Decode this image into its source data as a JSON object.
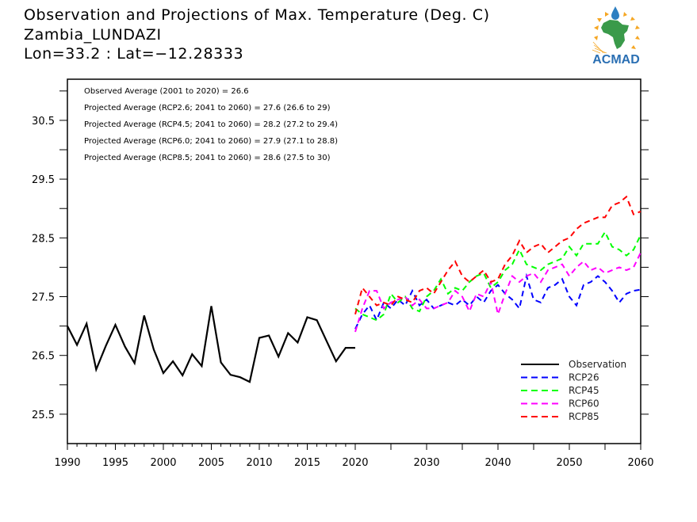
{
  "header": {
    "title": "Observation and Projections of Max. Temperature (Deg. C)",
    "station": "Zambia_LUNDAZI",
    "coords": "Lon=33.2 : Lat=−12.28333",
    "logo_text": "ACMAD"
  },
  "chart_data": {
    "type": "line",
    "title": "Observation and Projections of Max. Temperature (Deg. C)",
    "subtitle": "Zambia_LUNDAZI / Lon=33.2 : Lat=-12.28333",
    "xlabel": "",
    "ylabel": "",
    "ylim": [
      25.0,
      31.2
    ],
    "grid": false,
    "legend_position": "bottom-right",
    "x_axis_segments": [
      {
        "range": [
          1990,
          2020
        ],
        "ticks": [
          1990,
          1995,
          2000,
          2005,
          2010,
          2015,
          2020
        ],
        "minor_step": 1
      },
      {
        "range": [
          2020,
          2060
        ],
        "ticks": [
          2030,
          2040,
          2050,
          2060
        ],
        "minor_step": 5
      }
    ],
    "y_ticks": [
      25.5,
      26.5,
      27.5,
      28.5,
      29.5,
      30.5
    ],
    "y_minor_ticks": [
      26.0,
      27.0,
      28.0,
      29.0,
      30.0,
      31.0
    ],
    "annotations": [
      "Observed Average (2001 to 2020) = 26.6",
      "Projected Average (RCP2.6; 2041 to 2060) = 27.6 (26.6 to 29)",
      "Projected Average (RCP4.5; 2041 to 2060) = 28.2 (27.2 to 29.4)",
      "Projected Average (RCP6.0; 2041 to 2060) = 27.9 (27.1 to 28.8)",
      "Projected Average (RCP8.5; 2041 to 2060) = 28.6 (27.5 to 30)"
    ],
    "series": [
      {
        "name": "Observation",
        "color": "#000000",
        "dash": "solid",
        "x": [
          1990,
          1991,
          1992,
          1993,
          1994,
          1995,
          1996,
          1997,
          1998,
          1999,
          2000,
          2001,
          2002,
          2003,
          2004,
          2005,
          2006,
          2007,
          2008,
          2009,
          2010,
          2011,
          2012,
          2013,
          2014,
          2015,
          2016,
          2017,
          2018,
          2019,
          2020
        ],
        "values": [
          27.0,
          26.68,
          27.04,
          26.26,
          26.66,
          27.02,
          26.65,
          26.37,
          27.18,
          26.6,
          26.2,
          26.4,
          26.16,
          26.52,
          26.32,
          27.34,
          26.38,
          26.17,
          26.13,
          26.05,
          26.8,
          26.84,
          26.48,
          26.88,
          26.72,
          27.15,
          27.1,
          26.75,
          26.4,
          26.63,
          26.63
        ]
      },
      {
        "name": "RCP26",
        "color": "#0000ff",
        "dash": "dashed",
        "x": [
          2020,
          2021,
          2022,
          2023,
          2024,
          2025,
          2026,
          2027,
          2028,
          2029,
          2030,
          2031,
          2032,
          2033,
          2034,
          2035,
          2036,
          2037,
          2038,
          2039,
          2040,
          2041,
          2042,
          2043,
          2044,
          2045,
          2046,
          2047,
          2048,
          2049,
          2050,
          2051,
          2052,
          2053,
          2054,
          2055,
          2056,
          2057,
          2058,
          2059,
          2060
        ],
        "values": [
          26.95,
          27.2,
          27.35,
          27.1,
          27.4,
          27.3,
          27.45,
          27.35,
          27.6,
          27.35,
          27.45,
          27.3,
          27.35,
          27.4,
          27.35,
          27.45,
          27.35,
          27.5,
          27.4,
          27.6,
          27.7,
          27.55,
          27.45,
          27.3,
          27.85,
          27.45,
          27.4,
          27.65,
          27.7,
          27.8,
          27.5,
          27.35,
          27.7,
          27.75,
          27.85,
          27.75,
          27.6,
          27.4,
          27.55,
          27.6,
          27.62
        ]
      },
      {
        "name": "RCP45",
        "color": "#00ff00",
        "dash": "dashed",
        "x": [
          2020,
          2021,
          2022,
          2023,
          2024,
          2025,
          2026,
          2027,
          2028,
          2029,
          2030,
          2031,
          2032,
          2033,
          2034,
          2035,
          2036,
          2037,
          2038,
          2039,
          2040,
          2041,
          2042,
          2043,
          2044,
          2045,
          2046,
          2047,
          2048,
          2049,
          2050,
          2051,
          2052,
          2053,
          2054,
          2055,
          2056,
          2057,
          2058,
          2059,
          2060
        ],
        "values": [
          27.3,
          27.2,
          27.15,
          27.1,
          27.2,
          27.55,
          27.4,
          27.5,
          27.3,
          27.25,
          27.5,
          27.6,
          27.8,
          27.55,
          27.65,
          27.6,
          27.75,
          27.85,
          27.9,
          27.65,
          27.75,
          27.95,
          28.05,
          28.3,
          28.05,
          28.0,
          27.95,
          28.05,
          28.1,
          28.15,
          28.35,
          28.2,
          28.4,
          28.4,
          28.4,
          28.6,
          28.35,
          28.3,
          28.2,
          28.3,
          28.55
        ]
      },
      {
        "name": "RCP60",
        "color": "#ff00ff",
        "dash": "dashed",
        "x": [
          2020,
          2021,
          2022,
          2023,
          2024,
          2025,
          2026,
          2027,
          2028,
          2029,
          2030,
          2031,
          2032,
          2033,
          2034,
          2035,
          2036,
          2037,
          2038,
          2039,
          2040,
          2041,
          2042,
          2043,
          2044,
          2045,
          2046,
          2047,
          2048,
          2049,
          2050,
          2051,
          2052,
          2053,
          2054,
          2055,
          2056,
          2057,
          2058,
          2059,
          2060
        ],
        "values": [
          26.9,
          27.3,
          27.6,
          27.6,
          27.3,
          27.4,
          27.45,
          27.5,
          27.35,
          27.45,
          27.3,
          27.3,
          27.35,
          27.4,
          27.6,
          27.5,
          27.25,
          27.55,
          27.5,
          27.75,
          27.2,
          27.55,
          27.85,
          27.75,
          27.85,
          27.9,
          27.75,
          27.95,
          28.0,
          28.05,
          27.85,
          28.0,
          28.1,
          27.95,
          28.0,
          27.9,
          27.95,
          28.0,
          27.95,
          28.0,
          28.25
        ]
      },
      {
        "name": "RCP85",
        "color": "#ff0000",
        "dash": "dashed",
        "x": [
          2020,
          2021,
          2022,
          2023,
          2024,
          2025,
          2026,
          2027,
          2028,
          2029,
          2030,
          2031,
          2032,
          2033,
          2034,
          2035,
          2036,
          2037,
          2038,
          2039,
          2040,
          2041,
          2042,
          2043,
          2044,
          2045,
          2046,
          2047,
          2048,
          2049,
          2050,
          2051,
          2052,
          2053,
          2054,
          2055,
          2056,
          2057,
          2058,
          2059,
          2060
        ],
        "values": [
          27.2,
          27.65,
          27.5,
          27.35,
          27.4,
          27.35,
          27.5,
          27.45,
          27.4,
          27.6,
          27.65,
          27.55,
          27.75,
          27.95,
          28.1,
          27.85,
          27.75,
          27.85,
          27.95,
          27.75,
          27.8,
          28.05,
          28.2,
          28.45,
          28.25,
          28.35,
          28.4,
          28.25,
          28.35,
          28.45,
          28.5,
          28.65,
          28.75,
          28.8,
          28.85,
          28.85,
          29.05,
          29.1,
          29.2,
          28.9,
          28.95
        ]
      }
    ]
  },
  "legend": [
    {
      "label": "Observation",
      "color": "#000000",
      "dash": "solid"
    },
    {
      "label": "RCP26",
      "color": "#0000ff",
      "dash": "dashed"
    },
    {
      "label": "RCP45",
      "color": "#00ff00",
      "dash": "dashed"
    },
    {
      "label": "RCP60",
      "color": "#ff00ff",
      "dash": "dashed"
    },
    {
      "label": "RCP85",
      "color": "#ff0000",
      "dash": "dashed"
    }
  ]
}
